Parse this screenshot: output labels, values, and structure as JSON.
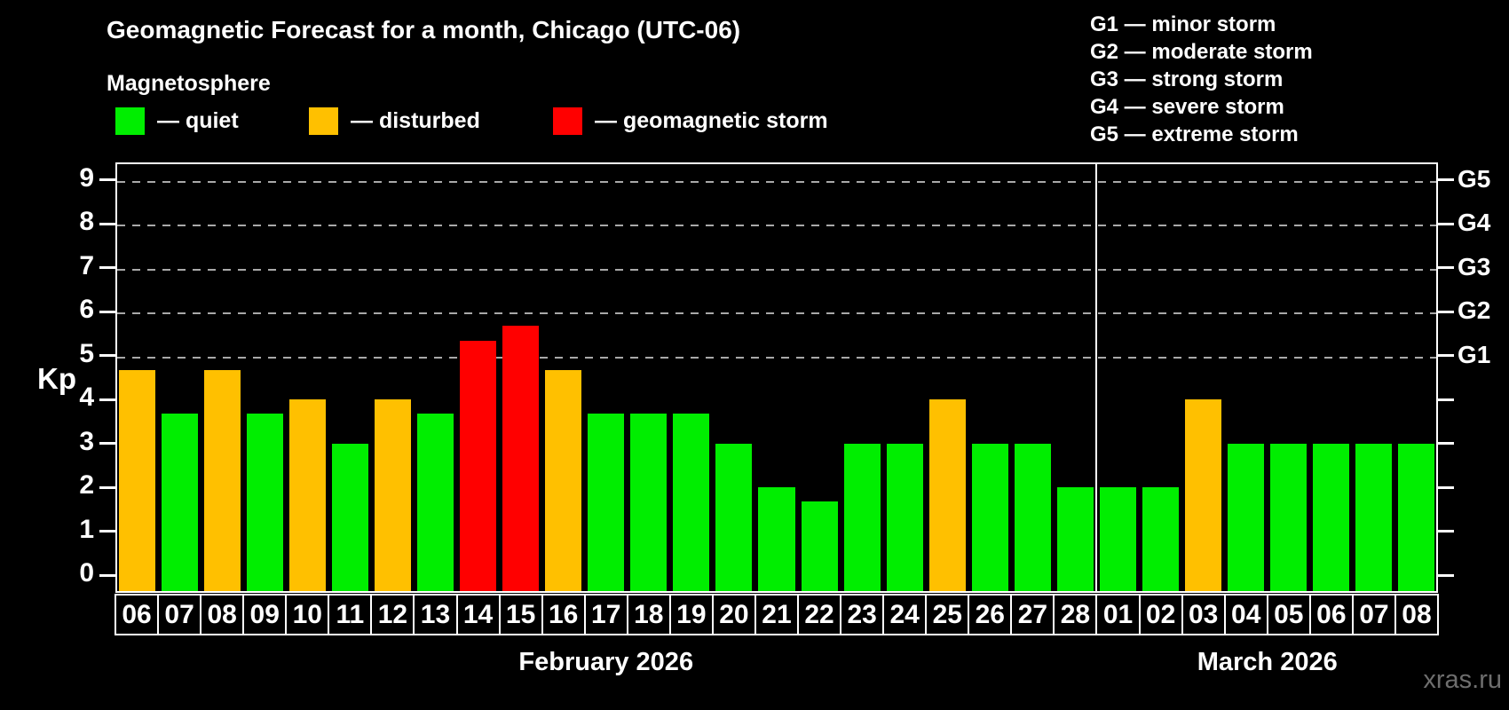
{
  "title": "Geomagnetic Forecast for a month, Chicago (UTC-06)",
  "subtitle": "Magnetosphere",
  "watermark": "xras.ru",
  "colors": {
    "quiet": "#00EE00",
    "disturbed": "#FFC000",
    "storm": "#FF0000",
    "axis": "#FFFFFF",
    "gridline": "#A9A9A9",
    "background": "#000000",
    "watermark_gray": "#6E6E6E"
  },
  "legend": {
    "items": [
      {
        "key": "quiet",
        "label": "— quiet",
        "x": 0
      },
      {
        "key": "disturbed",
        "label": "— disturbed",
        "x": 218
      },
      {
        "key": "storm",
        "label": "— geomagnetic storm",
        "x": 493
      }
    ]
  },
  "g_legend": [
    "G1 — minor storm",
    "G2 — moderate storm",
    "G3 — strong storm",
    "G4 — severe storm",
    "G5 — extreme storm"
  ],
  "y_axis": {
    "label": "Kp",
    "ticks": [
      0,
      1,
      2,
      3,
      4,
      5,
      6,
      7,
      8,
      9
    ]
  },
  "right_axis": {
    "labels": [
      {
        "text": "G1",
        "kp": 5
      },
      {
        "text": "G2",
        "kp": 6
      },
      {
        "text": "G3",
        "kp": 7
      },
      {
        "text": "G4",
        "kp": 8
      },
      {
        "text": "G5",
        "kp": 9
      }
    ]
  },
  "months": [
    {
      "label": "February 2026",
      "day_count": 23
    },
    {
      "label": "March 2026",
      "day_count": 8
    }
  ],
  "chart_data": {
    "type": "bar",
    "title": "Geomagnetic Forecast for a month, Chicago (UTC-06)",
    "xlabel": "",
    "ylabel": "Kp",
    "ylim": [
      -0.4,
      9.4
    ],
    "grid_kp_levels": [
      5,
      6,
      7,
      8,
      9
    ],
    "legend_position": "top-left",
    "categories": [
      "06",
      "07",
      "08",
      "09",
      "10",
      "11",
      "12",
      "13",
      "14",
      "15",
      "16",
      "17",
      "18",
      "19",
      "20",
      "21",
      "22",
      "23",
      "24",
      "25",
      "26",
      "27",
      "28",
      "01",
      "02",
      "03",
      "04",
      "05",
      "06",
      "07",
      "08"
    ],
    "values": [
      4.67,
      3.67,
      4.67,
      3.67,
      4.0,
      3.0,
      4.0,
      3.67,
      5.33,
      5.67,
      4.67,
      3.67,
      3.67,
      3.67,
      3.0,
      2.0,
      1.67,
      3.0,
      3.0,
      4.0,
      3.0,
      3.0,
      2.0,
      2.0,
      2.0,
      4.0,
      3.0,
      3.0,
      3.0,
      3.0,
      3.0
    ],
    "statuses": [
      "disturbed",
      "quiet",
      "disturbed",
      "quiet",
      "disturbed",
      "quiet",
      "disturbed",
      "quiet",
      "storm",
      "storm",
      "disturbed",
      "quiet",
      "quiet",
      "quiet",
      "quiet",
      "quiet",
      "quiet",
      "quiet",
      "quiet",
      "disturbed",
      "quiet",
      "quiet",
      "quiet",
      "quiet",
      "quiet",
      "disturbed",
      "quiet",
      "quiet",
      "quiet",
      "quiet",
      "quiet"
    ],
    "month_split_after_index": 22
  }
}
